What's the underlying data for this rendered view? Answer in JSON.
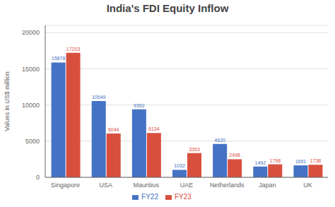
{
  "chart_data": {
    "type": "bar",
    "title": "India's FDI Equity Inflow",
    "ylabel": "Values in US$ million",
    "categories": [
      "Singapore",
      "USA",
      "Mauritius",
      "UAE",
      "Netherlands",
      "Japan",
      "UK"
    ],
    "series": [
      {
        "name": "FY22",
        "color": "#4472C4",
        "values": [
          15878,
          10549,
          9392,
          1032,
          4620,
          1492,
          1651
        ]
      },
      {
        "name": "FY23",
        "color": "#D94F3D",
        "values": [
          17203,
          6044,
          6134,
          3353,
          2498,
          1798,
          1738
        ]
      }
    ],
    "ylim": [
      0,
      21000
    ],
    "yticks": [
      0,
      5000,
      10000,
      15000,
      20000
    ],
    "grid": true,
    "legend": "bottom",
    "data_labels": true
  }
}
